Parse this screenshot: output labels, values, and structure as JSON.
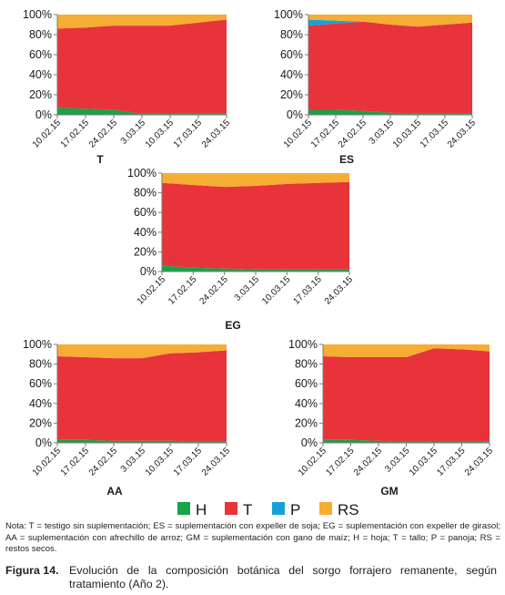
{
  "legend": [
    {
      "key": "H",
      "label": "H",
      "color": "#16a34a"
    },
    {
      "key": "T",
      "label": "T",
      "color": "#e8333a"
    },
    {
      "key": "P",
      "label": "P",
      "color": "#1aa0d8"
    },
    {
      "key": "RS",
      "label": "RS",
      "color": "#f6ad33"
    }
  ],
  "chart_data": [
    {
      "type": "area",
      "stacked": true,
      "title": "T",
      "categories": [
        "10.02.15",
        "17.02.15",
        "24.02.15",
        "3.03.15",
        "10.03.15",
        "17.03.15",
        "24.03.15"
      ],
      "y_ticks": [
        "0%",
        "20%",
        "40%",
        "60%",
        "80%",
        "100%"
      ],
      "ylim": [
        0,
        100
      ],
      "legend": "bottom",
      "series": [
        {
          "name": "H",
          "values": [
            7,
            6,
            5,
            1,
            1,
            1,
            1
          ]
        },
        {
          "name": "T",
          "values": [
            79,
            81,
            84,
            88,
            88,
            91,
            94
          ]
        },
        {
          "name": "P",
          "values": [
            0,
            0,
            0,
            0,
            0,
            0,
            0
          ]
        },
        {
          "name": "RS",
          "values": [
            14,
            13,
            11,
            11,
            11,
            8,
            5
          ]
        }
      ]
    },
    {
      "type": "area",
      "stacked": true,
      "title": "ES",
      "categories": [
        "10.02.15",
        "17.02.15",
        "24.02.15",
        "3.03.15",
        "10.03.15",
        "17.03.15",
        "24.03.15"
      ],
      "y_ticks": [
        "0%",
        "20%",
        "40%",
        "60%",
        "80%",
        "100%"
      ],
      "ylim": [
        0,
        100
      ],
      "legend": "bottom",
      "series": [
        {
          "name": "H",
          "values": [
            5,
            5,
            4,
            2,
            1,
            1,
            1
          ]
        },
        {
          "name": "T",
          "values": [
            84,
            86,
            89,
            88,
            87,
            89,
            91
          ]
        },
        {
          "name": "P",
          "values": [
            6,
            3,
            0,
            0,
            0,
            0,
            0
          ]
        },
        {
          "name": "RS",
          "values": [
            5,
            6,
            7,
            10,
            12,
            10,
            8
          ]
        }
      ]
    },
    {
      "type": "area",
      "stacked": true,
      "title": "EG",
      "categories": [
        "10.02.15",
        "17.02.15",
        "24.02.15",
        "3.03.15",
        "10.03.15",
        "17.03.15",
        "24.03.15"
      ],
      "y_ticks": [
        "0%",
        "20%",
        "40%",
        "60%",
        "80%",
        "100%"
      ],
      "ylim": [
        0,
        100
      ],
      "legend": "bottom",
      "series": [
        {
          "name": "H",
          "values": [
            6,
            4,
            3,
            2,
            2,
            2,
            2
          ]
        },
        {
          "name": "T",
          "values": [
            84,
            84,
            83,
            85,
            87,
            88,
            89
          ]
        },
        {
          "name": "P",
          "values": [
            0,
            0,
            0,
            0,
            0,
            0,
            0
          ]
        },
        {
          "name": "RS",
          "values": [
            10,
            12,
            14,
            13,
            11,
            10,
            9
          ]
        }
      ]
    },
    {
      "type": "area",
      "stacked": true,
      "title": "AA",
      "categories": [
        "10.02.15",
        "17.02.15",
        "24.02.15",
        "3.03.15",
        "10.03.15",
        "17.03.15",
        "24.03.15"
      ],
      "y_ticks": [
        "0%",
        "20%",
        "40%",
        "60%",
        "80%",
        "100%"
      ],
      "ylim": [
        0,
        100
      ],
      "legend": "bottom",
      "series": [
        {
          "name": "H",
          "values": [
            3,
            3,
            2,
            2,
            2,
            1,
            1
          ]
        },
        {
          "name": "T",
          "values": [
            85,
            84,
            84,
            84,
            89,
            91,
            93
          ]
        },
        {
          "name": "P",
          "values": [
            0,
            0,
            0,
            0,
            0,
            0,
            0
          ]
        },
        {
          "name": "RS",
          "values": [
            12,
            13,
            14,
            14,
            9,
            8,
            6
          ]
        }
      ]
    },
    {
      "type": "area",
      "stacked": true,
      "title": "GM",
      "categories": [
        "10.02.15",
        "17.02.15",
        "24.02.15",
        "3.03.15",
        "10.03.15",
        "17.03.15",
        "24.03.15"
      ],
      "y_ticks": [
        "0%",
        "20%",
        "40%",
        "60%",
        "80%",
        "100%"
      ],
      "ylim": [
        0,
        100
      ],
      "legend": "bottom",
      "series": [
        {
          "name": "H",
          "values": [
            3,
            3,
            2,
            1,
            1,
            1,
            1
          ]
        },
        {
          "name": "T",
          "values": [
            85,
            84,
            85,
            86,
            95,
            94,
            92
          ]
        },
        {
          "name": "P",
          "values": [
            0,
            0,
            0,
            0,
            0,
            0,
            0
          ]
        },
        {
          "name": "RS",
          "values": [
            12,
            13,
            13,
            13,
            4,
            5,
            7
          ]
        }
      ]
    }
  ],
  "note": "Nota: T = testigo sin suplementación; ES = suplementación con expeller de soja; EG = suplementación con expeller de girasol; AA = suplementación con afrechillo de arroz; GM = suplementación con gano de maíz; H = hoja; T = tallo; P = panoja; RS = restos secos.",
  "caption": {
    "label": "Figura 14.",
    "text": "Evolución de la composición botánica del sorgo forrajero remanente, según tratamiento (Año 2)."
  }
}
